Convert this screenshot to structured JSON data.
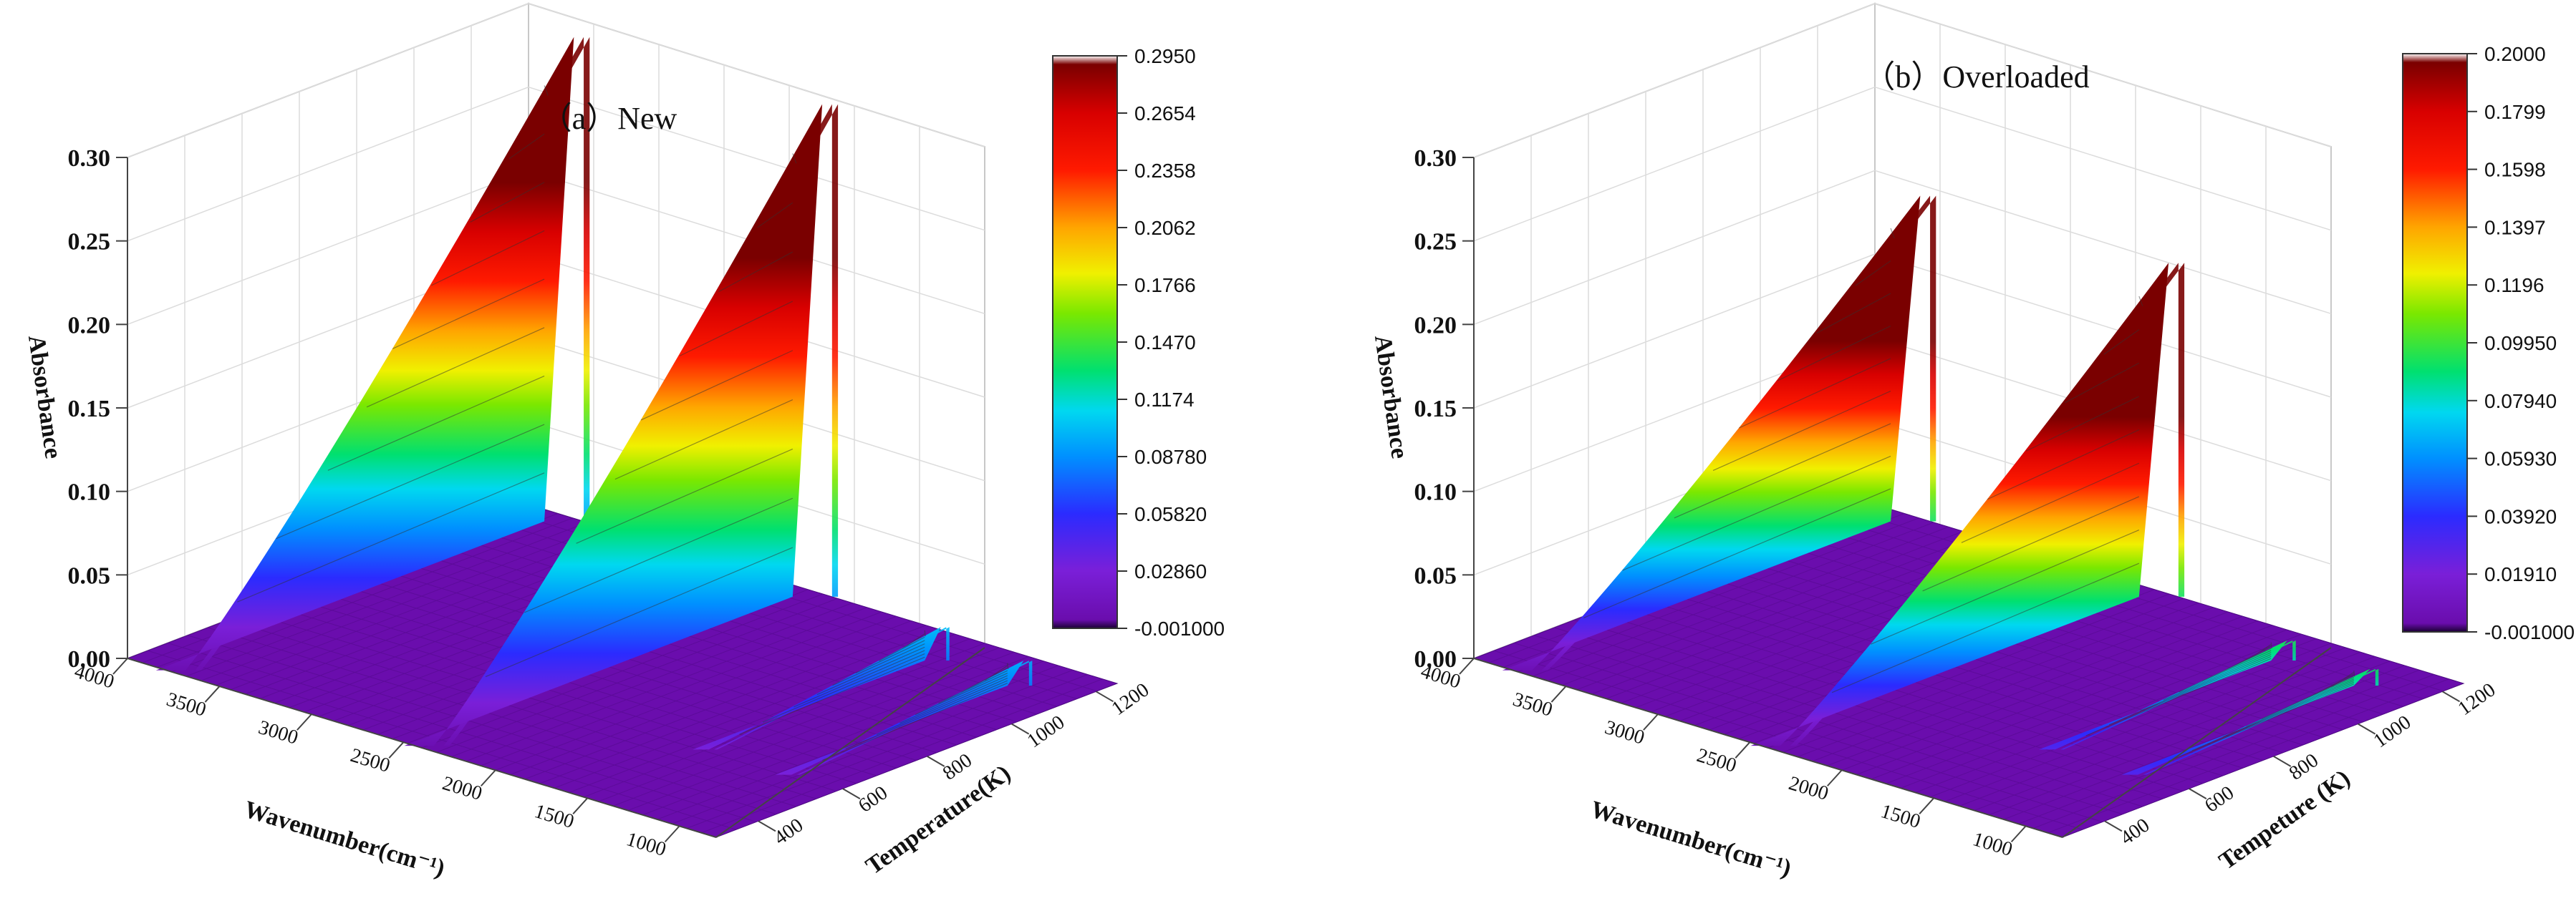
{
  "chart_data": [
    {
      "type": "surface3d",
      "title": "（a）New",
      "xlabel": "Wavenumber(cm⁻¹)",
      "ylabel": "Temperature(K)",
      "zlabel": "Absorbance",
      "x_ticks": [
        "4000",
        "3500",
        "3000",
        "2500",
        "2000",
        "1500",
        "1000"
      ],
      "y_ticks": [
        "400",
        "600",
        "800",
        "1000",
        "1200"
      ],
      "z_ticks": [
        "0.00",
        "0.05",
        "0.10",
        "0.15",
        "0.20",
        "0.25",
        "0.30"
      ],
      "xlim": [
        4000,
        800
      ],
      "ylim": [
        300,
        1250
      ],
      "zlim": [
        0,
        0.3
      ],
      "colorbar": {
        "min": -0.001,
        "max": 0.295,
        "ticks": [
          "0.2950",
          "0.2654",
          "0.2358",
          "0.2062",
          "0.1766",
          "0.1470",
          "0.1174",
          "0.08780",
          "0.05820",
          "0.02860",
          "-0.001000"
        ]
      },
      "peaks": [
        {
          "wavenumber": 3700,
          "temperature_start": 1250,
          "temperature_end": 330,
          "absorbance_max": 0.29
        },
        {
          "wavenumber": 2350,
          "temperature_start": 1250,
          "temperature_end": 330,
          "absorbance_max": 0.295
        },
        {
          "wavenumber": 1500,
          "temperature_start": 1150,
          "temperature_end": 600,
          "absorbance_max": 0.02
        },
        {
          "wavenumber": 1050,
          "temperature_start": 1150,
          "temperature_end": 600,
          "absorbance_max": 0.015
        }
      ]
    },
    {
      "type": "surface3d",
      "title": "（b）Overloaded",
      "xlabel": "Wavenumber(cm⁻¹)",
      "ylabel": "Tempeture (K)",
      "zlabel": "Absorbance",
      "x_ticks": [
        "4000",
        "3500",
        "3000",
        "2500",
        "2000",
        "1500",
        "1000"
      ],
      "y_ticks": [
        "400",
        "600",
        "800",
        "1000",
        "1200"
      ],
      "z_ticks": [
        "0.00",
        "0.05",
        "0.10",
        "0.15",
        "0.20",
        "0.25",
        "0.30"
      ],
      "xlim": [
        4000,
        800
      ],
      "ylim": [
        300,
        1250
      ],
      "zlim": [
        0,
        0.3
      ],
      "colorbar": {
        "min": -0.001,
        "max": 0.2,
        "ticks": [
          "0.2000",
          "0.1799",
          "0.1598",
          "0.1397",
          "0.1196",
          "0.09950",
          "0.07940",
          "0.05930",
          "0.03920",
          "0.01910",
          "-0.001000"
        ]
      },
      "peaks": [
        {
          "wavenumber": 3700,
          "temperature_start": 1250,
          "temperature_end": 330,
          "absorbance_max": 0.195
        },
        {
          "wavenumber": 2350,
          "temperature_start": 1250,
          "temperature_end": 330,
          "absorbance_max": 0.2
        },
        {
          "wavenumber": 1500,
          "temperature_start": 1150,
          "temperature_end": 600,
          "absorbance_max": 0.012
        },
        {
          "wavenumber": 1050,
          "temperature_start": 1150,
          "temperature_end": 600,
          "absorbance_max": 0.01
        }
      ]
    }
  ]
}
